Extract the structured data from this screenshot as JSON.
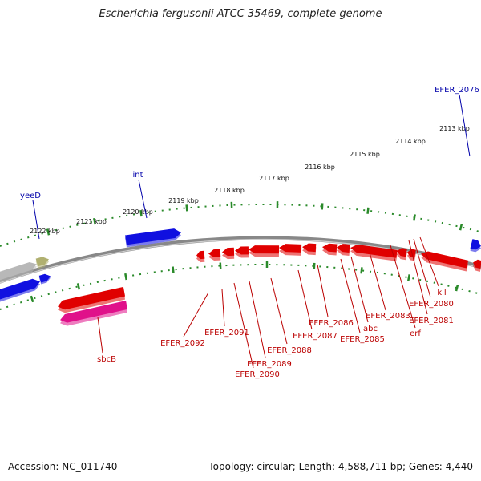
{
  "title": "Escherichia fergusonii ATCC 35469, complete genome",
  "accession": "Accession: NC_011740",
  "summary": "Topology: circular; Length: 4,588,711 bp; Genes: 4,440",
  "colors": {
    "backbone": "#888888",
    "tick_green": "#2a8a2a",
    "forward_gene": "#1010e0",
    "reverse_gene": "#e00000",
    "sbcB_gene": "#e0108a",
    "grey_gene": "#b8b8b8",
    "olive_gene": "#b0b070",
    "label_blue": "#0000aa",
    "label_red": "#bb0000"
  },
  "scale_labels": [
    "2113 kbp",
    "2114 kbp",
    "2115 kbp",
    "2116 kbp",
    "2117 kbp",
    "2118 kbp",
    "2119 kbp",
    "2120 kbp",
    "2121 kbp",
    "2122 kbp"
  ],
  "forward_gene_labels": [
    "EFER_2076",
    "int",
    "yeeD"
  ],
  "reverse_gene_labels": [
    "kil",
    "EFER_2080",
    "EFER_2081",
    "erf",
    "EFER_2083",
    "abc",
    "EFER_2085",
    "EFER_2086",
    "EFER_2087",
    "EFER_2088",
    "EFER_2089",
    "EFER_2090",
    "EFER_2091",
    "EFER_2092",
    "sbcB"
  ]
}
